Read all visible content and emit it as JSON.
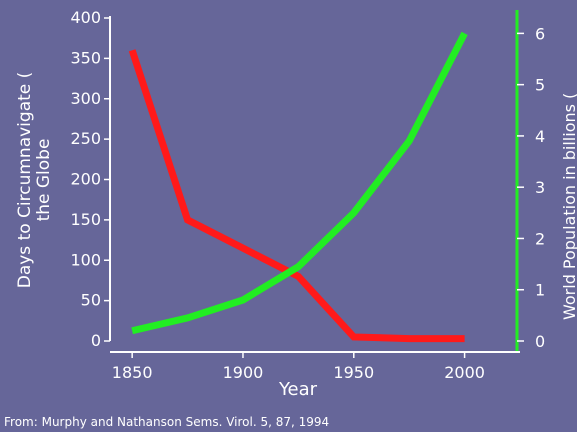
{
  "chart_data": {
    "type": "line",
    "xlabel": "Year",
    "x_ticks": [
      1850,
      1900,
      1950,
      2000
    ],
    "xlim": [
      1840,
      2025
    ],
    "y_left": {
      "label_line1": "Days to Circumnavigate (",
      "label_line2": "the Globe",
      "ticks": [
        0,
        50,
        100,
        150,
        200,
        250,
        300,
        350,
        400
      ],
      "ylim": [
        0,
        400
      ],
      "color": "#ff1a1a"
    },
    "y_right": {
      "label": "World Population in billions (",
      "ticks": [
        0,
        1,
        2,
        3,
        4,
        5,
        6
      ],
      "ylim": [
        0,
        6.3
      ],
      "color": "#22ee22"
    },
    "series": [
      {
        "axis": "left",
        "color": "#ff1a1a",
        "x": [
          1850,
          1875,
          1900,
          1925,
          1950,
          1975,
          2000
        ],
        "values": [
          360,
          150,
          115,
          80,
          5,
          3,
          3
        ]
      },
      {
        "axis": "right",
        "color": "#22ee22",
        "x": [
          1850,
          1875,
          1900,
          1925,
          1950,
          1975,
          2000
        ],
        "values": [
          0.2,
          0.45,
          0.8,
          1.45,
          2.5,
          3.9,
          6.0
        ]
      }
    ],
    "background": "#666699",
    "axis_color": "#ffffff",
    "source": "From: Murphy and Nathanson Sems. Virol. 5, 87, 1994"
  }
}
